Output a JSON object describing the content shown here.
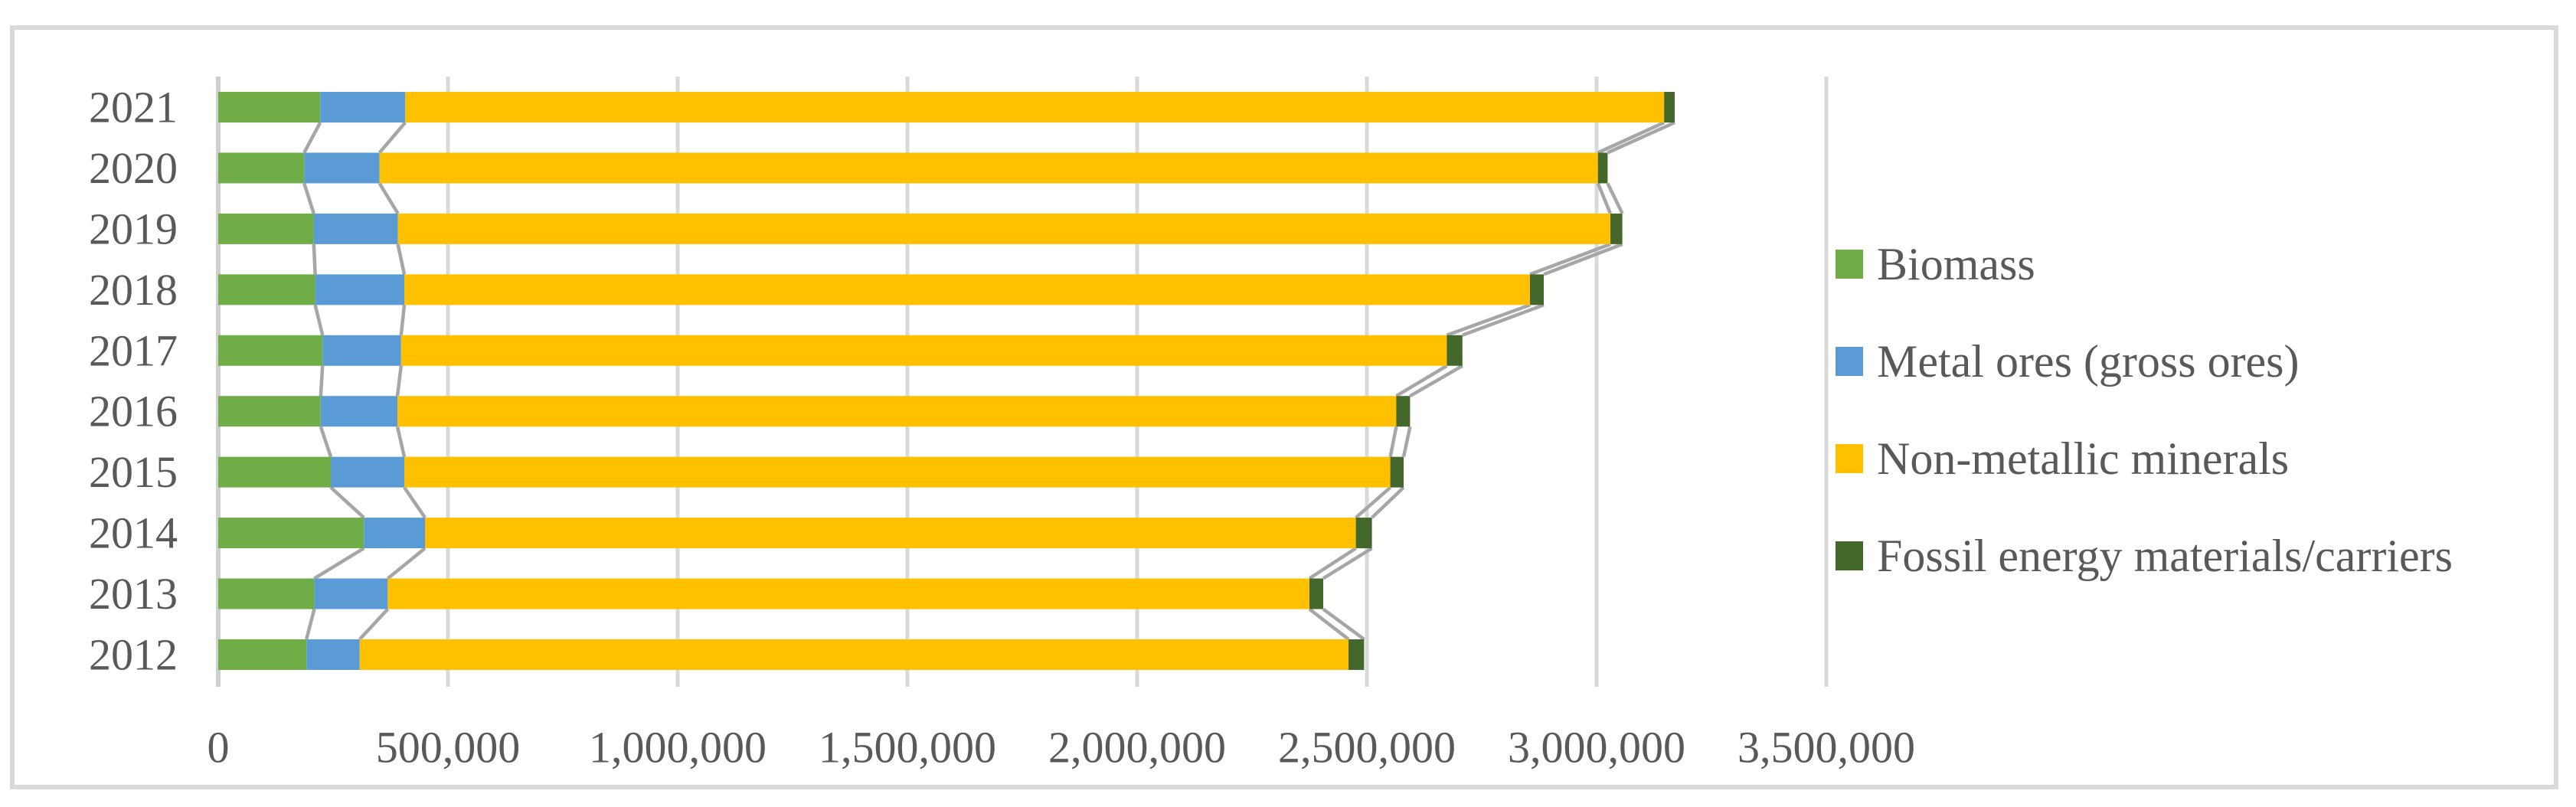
{
  "chart_data": {
    "type": "bar",
    "orientation": "horizontal",
    "stacked": true,
    "title": "",
    "categories": [
      "2021",
      "2020",
      "2019",
      "2018",
      "2017",
      "2016",
      "2015",
      "2014",
      "2013",
      "2012"
    ],
    "series": [
      {
        "name": "Biomass",
        "color": "#70AD47",
        "values": [
          222000,
          187000,
          208000,
          211000,
          227000,
          223000,
          245000,
          317000,
          209000,
          192000
        ]
      },
      {
        "name": "Metal ores (gross ores)",
        "color": "#5B9BD5",
        "values": [
          185000,
          164000,
          183000,
          194000,
          171000,
          167000,
          160000,
          133000,
          160000,
          116000
        ]
      },
      {
        "name": "Non-metallic minerals",
        "color": "#FFC000",
        "values": [
          2740000,
          2652000,
          2639000,
          2450000,
          2276000,
          2174000,
          2146000,
          2026000,
          2006000,
          2152000
        ]
      },
      {
        "name": "Fossil energy materials/carriers",
        "color": "#44682B",
        "values": [
          23000,
          21000,
          26000,
          30000,
          34000,
          30000,
          29000,
          35000,
          30000,
          34000
        ]
      }
    ],
    "totals": [
      3170000,
      3024000,
      3056000,
      2885000,
      2708000,
      2594000,
      2580000,
      2511000,
      2405000,
      2494000
    ],
    "x_axis": {
      "min": 0,
      "max": 3500000,
      "tick_step": 500000,
      "tick_labels": [
        "0",
        "500,000",
        "1,000,000",
        "1,500,000",
        "2,000,000",
        "2,500,000",
        "3,000,000",
        "3,500,000"
      ]
    },
    "gridlines": true,
    "series_connector_lines": true,
    "legend_position": "right"
  },
  "legend": {
    "items": [
      {
        "label": "Biomass",
        "color": "#70AD47"
      },
      {
        "label": "Metal ores (gross ores)",
        "color": "#5B9BD5"
      },
      {
        "label": "Non-metallic minerals",
        "color": "#FFC000"
      },
      {
        "label": "Fossil energy materials/carriers",
        "color": "#44682B"
      }
    ]
  },
  "colors": {
    "background": "#FFFFFF",
    "chart_border": "#D9D9D9",
    "gridline": "#D9D9D9",
    "zero_axis_line": "#CFCFCF",
    "connector_line": "#A6A6A6",
    "axis_text": "#595959"
  }
}
